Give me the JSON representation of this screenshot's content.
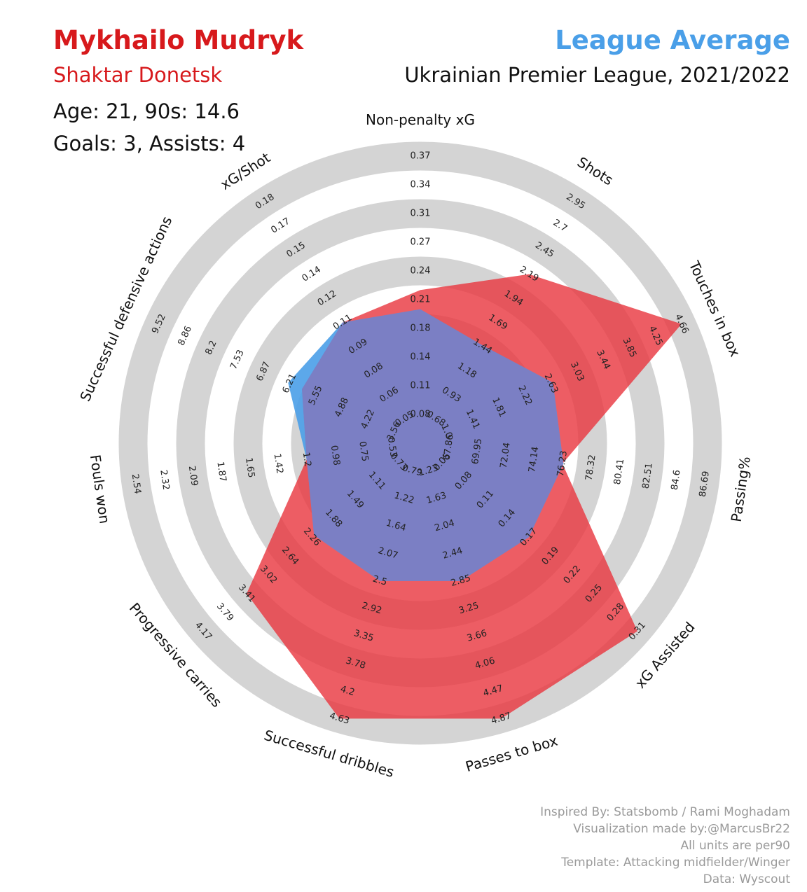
{
  "header": {
    "player": "Mykhailo Mudryk",
    "team": "Shaktar Donetsk",
    "age_line": "Age: 21, 90s: 14.6",
    "goals_line": "Goals: 3, Assists: 4",
    "comparison": "League Average",
    "league": "Ukrainian Premier League, 2021/2022"
  },
  "credits": [
    "Inspired By: Statsbomb / Rami Moghadam",
    "Visualization made by:@MarcusBr22",
    "All units are per90",
    "Template: Attacking midfielder/Winger",
    "Data: Wyscout"
  ],
  "colors": {
    "player": "#e8343d",
    "league": "#4a9fe8",
    "overlap": "#7b7fc4",
    "ring": "#d4d4d4"
  },
  "chart_data": {
    "type": "radar",
    "grid": true,
    "series": [
      {
        "name": "Mykhailo Mudryk",
        "color": "#e8343d",
        "values": [
          0.22,
          2.19,
          4.66,
          76.23,
          0.31,
          4.87,
          4.63,
          3.41,
          1.2,
          5.9,
          0.11
        ]
      },
      {
        "name": "League Average",
        "color": "#4a9fe8",
        "values": [
          0.2,
          1.45,
          2.66,
          76.3,
          0.17,
          2.85,
          2.5,
          2.22,
          1.2,
          6.25,
          0.11
        ]
      }
    ],
    "axes": [
      {
        "label": "Non-penalty xG",
        "ticks": [
          "0.08",
          "0.11",
          "0.14",
          "0.18",
          "0.21",
          "0.24",
          "0.27",
          "0.31",
          "0.34",
          "0.37"
        ]
      },
      {
        "label": "Shots",
        "ticks": [
          "0.68",
          "0.93",
          "1.18",
          "1.44",
          "1.69",
          "1.94",
          "2.19",
          "2.45",
          "2.7",
          "2.95"
        ]
      },
      {
        "label": "Touches in box",
        "ticks": [
          "1.0",
          "1.41",
          "1.81",
          "2.22",
          "2.63",
          "3.03",
          "3.44",
          "3.85",
          "4.25",
          "4.66"
        ]
      },
      {
        "label": "Passing%",
        "ticks": [
          "67.86",
          "69.95",
          "72.04",
          "74.14",
          "76.23",
          "78.32",
          "80.41",
          "82.51",
          "84.6",
          "86.69"
        ]
      },
      {
        "label": "xG Assisted",
        "ticks": [
          "0.05",
          "0.08",
          "0.11",
          "0.14",
          "0.17",
          "0.19",
          "0.22",
          "0.25",
          "0.28",
          "0.31"
        ]
      },
      {
        "label": "Passes to box",
        "ticks": [
          "1.23",
          "1.63",
          "2.04",
          "2.44",
          "2.85",
          "3.25",
          "3.66",
          "4.06",
          "4.47",
          "4.87"
        ]
      },
      {
        "label": "Successful dribbles",
        "ticks": [
          "0.79",
          "1.22",
          "1.64",
          "2.07",
          "2.5",
          "2.92",
          "3.35",
          "3.78",
          "4.2",
          "4.63"
        ]
      },
      {
        "label": "Progressive carries",
        "ticks": [
          "0.73",
          "1.11",
          "1.49",
          "1.88",
          "2.26",
          "2.64",
          "3.02",
          "3.41",
          "3.79",
          "4.17"
        ]
      },
      {
        "label": "Fouls won",
        "ticks": [
          "0.53",
          "0.75",
          "0.98",
          "1.2",
          "1.42",
          "1.65",
          "1.87",
          "2.09",
          "2.32",
          "2.54"
        ]
      },
      {
        "label": "Successful defensive actions",
        "ticks": [
          "3.56",
          "4.22",
          "4.88",
          "5.55",
          "6.21",
          "6.87",
          "7.53",
          "8.2",
          "8.86",
          "9.52"
        ]
      },
      {
        "label": "xG/Shot",
        "ticks": [
          "0.05",
          "0.06",
          "0.08",
          "0.09",
          "0.11",
          "0.12",
          "0.14",
          "0.15",
          "0.17",
          "0.18"
        ]
      }
    ]
  }
}
